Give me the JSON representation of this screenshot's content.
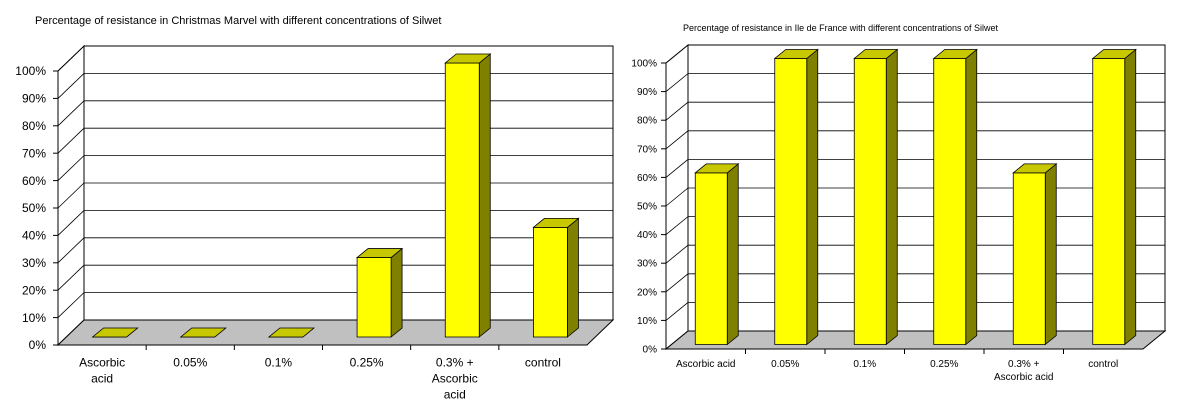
{
  "chart_data": [
    {
      "type": "bar",
      "title": "Percentage of resistance in Christmas Marvel with different concentrations of Silwet",
      "categories": [
        "Ascorbic acid",
        "0.05%",
        "0.1%",
        "0.25%",
        "0.3% + Ascorbic acid",
        "control"
      ],
      "category_lines": [
        [
          "Ascorbic",
          "acid"
        ],
        [
          "0.05%"
        ],
        [
          "0.1%"
        ],
        [
          "0.25%"
        ],
        [
          "0.3% +",
          "Ascorbic",
          "acid"
        ],
        [
          "control"
        ]
      ],
      "values": [
        0,
        0,
        0,
        29,
        100,
        40
      ],
      "yticks": [
        "0%",
        "10%",
        "20%",
        "30%",
        "40%",
        "50%",
        "60%",
        "70%",
        "80%",
        "90%",
        "100%"
      ],
      "ylim": [
        0,
        100
      ],
      "grid": true,
      "colors": {
        "bar_front": "#ffff00",
        "bar_top": "#c8c800",
        "bar_side": "#808000",
        "floor": "#c0c0c0",
        "wall": "#ffffff"
      }
    },
    {
      "type": "bar",
      "title": "Percentage of resistance in Ile de France with different concentrations of Silwet",
      "categories": [
        "Ascorbic acid",
        "0.05%",
        "0.1%",
        "0.25%",
        "0.3% + Ascorbic acid",
        "control"
      ],
      "category_lines": [
        [
          "Ascorbic acid"
        ],
        [
          "0.05%"
        ],
        [
          "0.1%"
        ],
        [
          "0.25%"
        ],
        [
          "0.3% +",
          "Ascorbic acid"
        ],
        [
          "control"
        ]
      ],
      "values": [
        60,
        100,
        100,
        100,
        60,
        100
      ],
      "yticks": [
        "0%",
        "10%",
        "20%",
        "30%",
        "40%",
        "50%",
        "60%",
        "70%",
        "80%",
        "90%",
        "100%"
      ],
      "ylim": [
        0,
        100
      ],
      "grid": true,
      "colors": {
        "bar_front": "#ffff00",
        "bar_top": "#c8c800",
        "bar_side": "#808000",
        "floor": "#c0c0c0",
        "wall": "#ffffff"
      }
    }
  ]
}
